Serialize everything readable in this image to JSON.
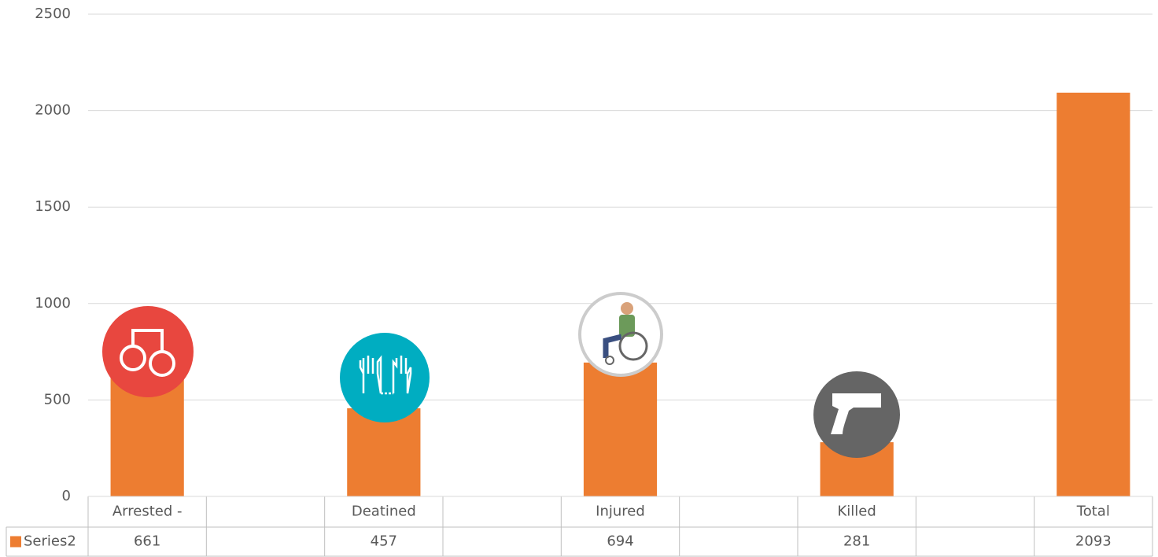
{
  "chart_data": {
    "type": "bar",
    "categories": [
      "Arrested -",
      null,
      "Deatined",
      null,
      "Injured",
      null,
      "Killed",
      null,
      "Total"
    ],
    "series": [
      {
        "name": "Series2",
        "color": "#ed7d31",
        "values": [
          661,
          null,
          457,
          null,
          694,
          null,
          281,
          null,
          2093
        ]
      }
    ],
    "ylim": [
      0,
      2500
    ],
    "yticks": [
      0,
      500,
      1000,
      1500,
      2000,
      2500
    ],
    "grid": true
  }
}
